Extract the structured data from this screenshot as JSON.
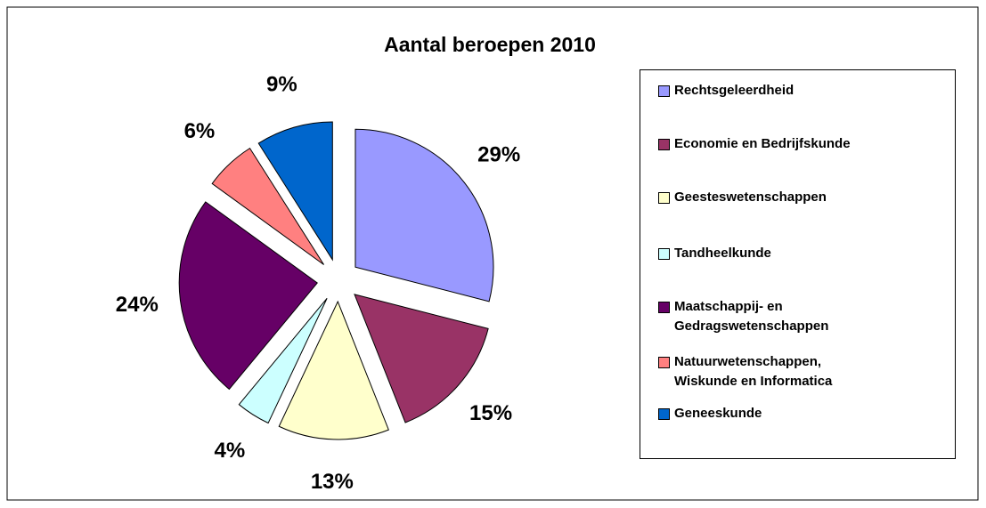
{
  "chart_data": {
    "type": "pie",
    "title": "Aantal beroepen 2010",
    "categories": [
      "Rechtsgeleerdheid",
      "Economie en Bedrijfskunde",
      "Geesteswetenschappen",
      "Tandheelkunde",
      "Maatschappij- en\nGedragswetenschappen",
      "Natuurwetenschappen,\nWiskunde en Informatica",
      "Geneeskunde"
    ],
    "values": [
      29,
      15,
      13,
      4,
      24,
      6,
      9
    ],
    "value_labels": [
      "29%",
      "15%",
      "13%",
      "4%",
      "24%",
      "6%",
      "9%"
    ],
    "colors": [
      "#9999ff",
      "#993366",
      "#ffffcc",
      "#ccffff",
      "#660066",
      "#ff8080",
      "#0066cc"
    ],
    "legend": "right"
  }
}
